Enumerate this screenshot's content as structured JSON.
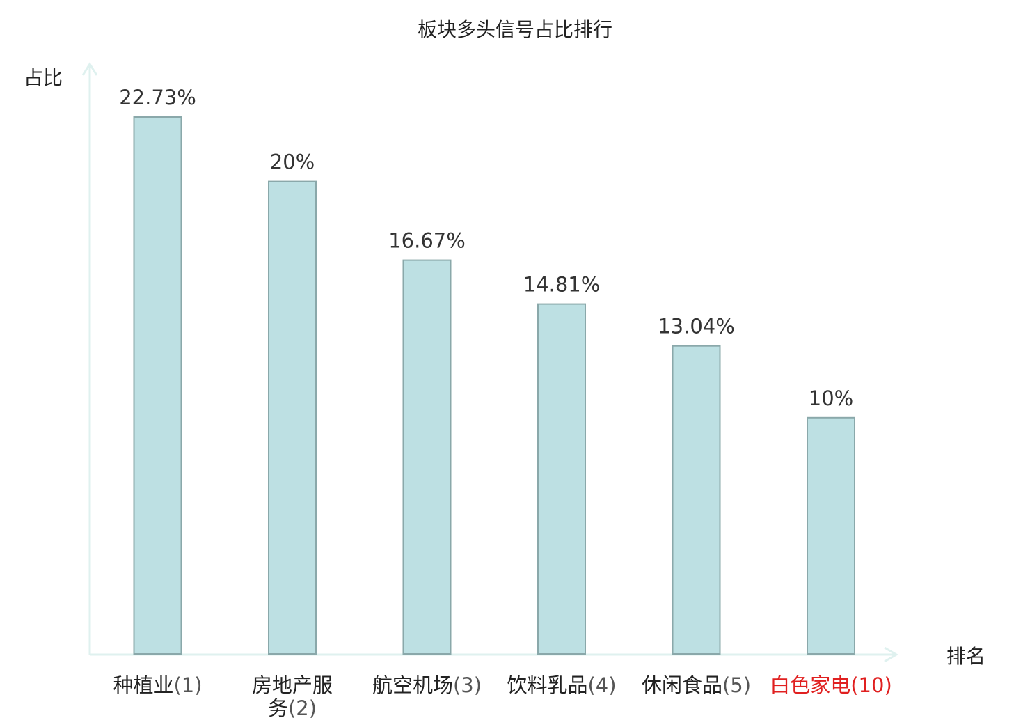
{
  "chart_data": {
    "type": "bar",
    "title": "板块多头信号占比排行",
    "ylabel": "占比",
    "xlabel": "排名",
    "categories": [
      {
        "name_lines": [
          "种植业"
        ],
        "rank": "(1)",
        "highlight": false
      },
      {
        "name_lines": [
          "房地产服",
          "务"
        ],
        "rank": "(2)",
        "highlight": false
      },
      {
        "name_lines": [
          "航空机场"
        ],
        "rank": "(3)",
        "highlight": false
      },
      {
        "name_lines": [
          "饮料乳品"
        ],
        "rank": "(4)",
        "highlight": false
      },
      {
        "name_lines": [
          "休闲食品"
        ],
        "rank": "(5)",
        "highlight": false
      },
      {
        "name_lines": [
          "白色家电"
        ],
        "rank": "(10)",
        "highlight": true
      }
    ],
    "values": [
      22.73,
      20,
      16.67,
      14.81,
      13.04,
      10
    ],
    "value_labels": [
      "22.73%",
      "20%",
      "16.67%",
      "14.81%",
      "13.04%",
      "10%"
    ],
    "ylim": [
      0,
      22.73
    ],
    "grid": false,
    "legend": "none",
    "colors": {
      "bar_fill": "#bde0e3",
      "bar_stroke": "#8aa8aa",
      "axis": "#dff1ef",
      "text": "#222222",
      "value_text": "#333333",
      "rank_text": "#555555",
      "highlight": "#e02020"
    }
  }
}
